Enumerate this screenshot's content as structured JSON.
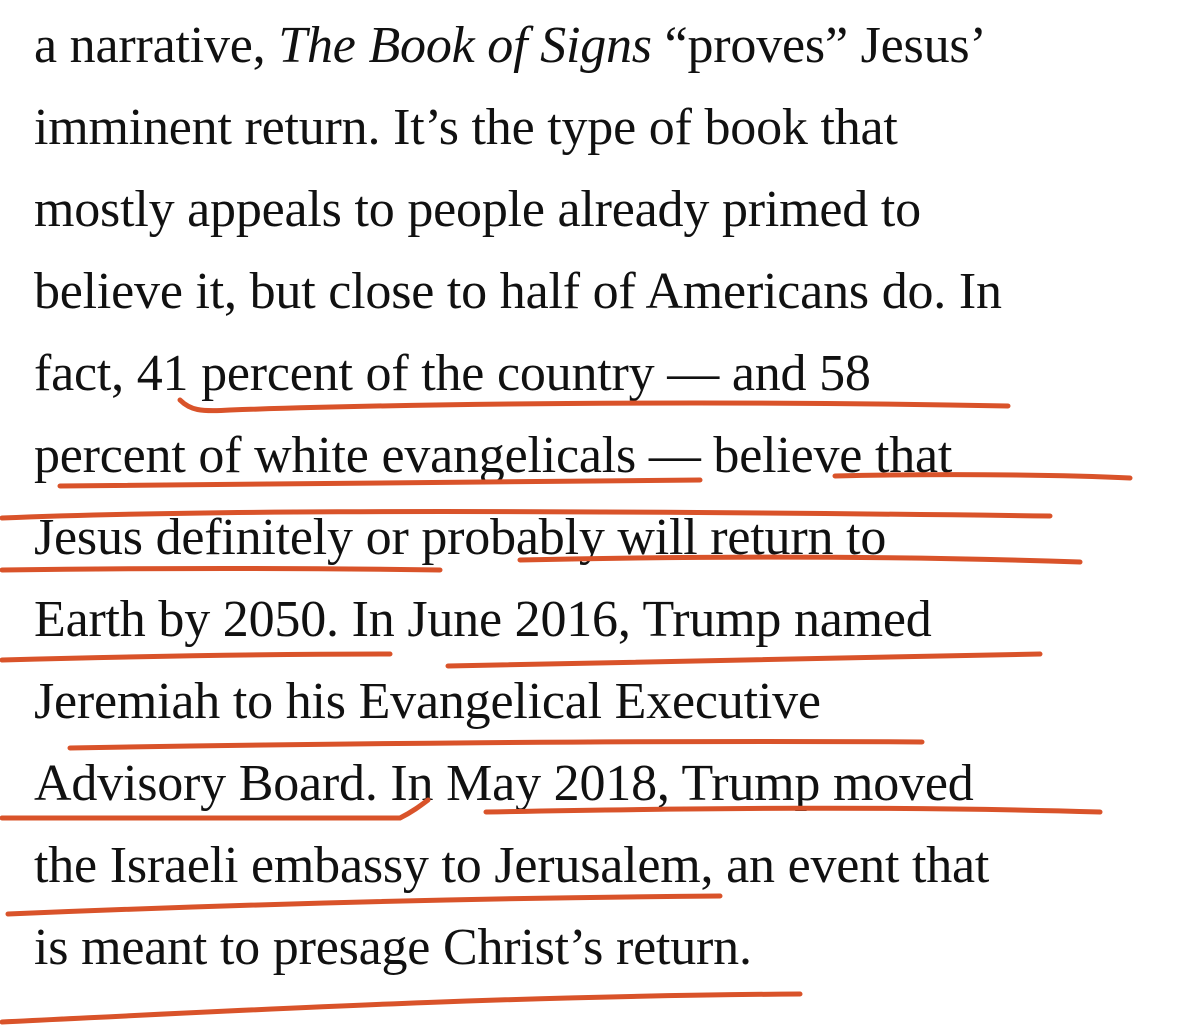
{
  "article": {
    "lines": [
      {
        "segments": [
          {
            "text": "a narrative, ",
            "italic": false
          },
          {
            "text": "The Book of Signs",
            "italic": true
          },
          {
            "text": " “proves” Jesus’",
            "italic": false
          }
        ]
      },
      {
        "segments": [
          {
            "text": "imminent return. It’s the type of book that",
            "italic": false
          }
        ]
      },
      {
        "segments": [
          {
            "text": "mostly appeals to people already primed to",
            "italic": false
          }
        ]
      },
      {
        "segments": [
          {
            "text": "believe it, but close to half of Americans do. In",
            "italic": false
          }
        ]
      },
      {
        "segments": [
          {
            "text": "fact, 41 percent of the country — and 58",
            "italic": false
          }
        ]
      },
      {
        "segments": [
          {
            "text": "percent of white evangelicals — believe that",
            "italic": false
          }
        ]
      },
      {
        "segments": [
          {
            "text": "Jesus definitely or probably will return to",
            "italic": false
          }
        ]
      },
      {
        "segments": [
          {
            "text": "Earth by 2050. In June 2016, Trump named",
            "italic": false
          }
        ]
      },
      {
        "segments": [
          {
            "text": "Jeremiah to his Evangelical Executive",
            "italic": false
          }
        ]
      },
      {
        "segments": [
          {
            "text": "Advisory Board. In May 2018, Trump moved",
            "italic": false
          }
        ]
      },
      {
        "segments": [
          {
            "text": "the Israeli embassy to Jerusalem, an event that",
            "italic": false
          }
        ]
      },
      {
        "segments": [
          {
            "text": "is meant to presage Christ’s return.",
            "italic": false
          }
        ]
      }
    ]
  },
  "colors": {
    "text": "#111111",
    "annotation": "#d9532a",
    "background": "#ffffff"
  }
}
